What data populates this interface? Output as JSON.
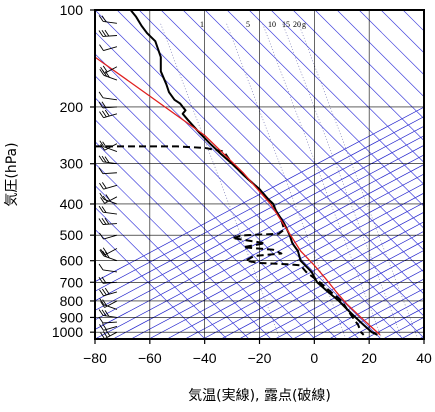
{
  "chart_data": {
    "type": "line",
    "title": "",
    "xlabel": "気温(実線), 露点(破線)",
    "ylabel": "気圧(hPa)",
    "xlim": [
      -80,
      40
    ],
    "ylim": [
      1050,
      100
    ],
    "y_scale": "log",
    "x_ticks": [
      -80,
      -60,
      -40,
      -20,
      0,
      20,
      40
    ],
    "y_ticks": [
      100,
      200,
      300,
      400,
      500,
      600,
      700,
      800,
      900,
      1000
    ],
    "grid": true,
    "mixing_ratio_labels": [
      "1",
      "5",
      "10",
      "15",
      "20",
      "g"
    ],
    "series": [
      {
        "role": "temperature",
        "style": "solid",
        "color": "#000000",
        "points": [
          [
            -67,
            100
          ],
          [
            -65,
            105
          ],
          [
            -63,
            112
          ],
          [
            -61,
            118
          ],
          [
            -58,
            125
          ],
          [
            -56,
            140
          ],
          [
            -56,
            155
          ],
          [
            -54,
            170
          ],
          [
            -53,
            180
          ],
          [
            -51,
            190
          ],
          [
            -49,
            195
          ],
          [
            -47,
            205
          ],
          [
            -48,
            210
          ],
          [
            -46,
            220
          ],
          [
            -42,
            240
          ],
          [
            -38,
            260
          ],
          [
            -34,
            280
          ],
          [
            -30,
            300
          ],
          [
            -25,
            330
          ],
          [
            -20,
            360
          ],
          [
            -17,
            385
          ],
          [
            -15,
            400
          ],
          [
            -14,
            420
          ],
          [
            -11,
            460
          ],
          [
            -9,
            500
          ],
          [
            -8,
            530
          ],
          [
            -6,
            560
          ],
          [
            -5,
            600
          ],
          [
            -1,
            650
          ],
          [
            1,
            700
          ],
          [
            5,
            750
          ],
          [
            9,
            800
          ],
          [
            12,
            850
          ],
          [
            15,
            900
          ],
          [
            18,
            950
          ],
          [
            21,
            1000
          ],
          [
            23,
            1020
          ]
        ]
      },
      {
        "role": "dewpoint",
        "style": "dashed",
        "color": "#000000",
        "points": [
          [
            -80,
            265
          ],
          [
            -50,
            265
          ],
          [
            -40,
            268
          ],
          [
            -33,
            275
          ],
          [
            -30,
            300
          ],
          [
            -25,
            330
          ],
          [
            -20,
            360
          ],
          [
            -17,
            385
          ],
          [
            -15,
            400
          ],
          [
            -14,
            420
          ],
          [
            -12,
            450
          ],
          [
            -11,
            480
          ],
          [
            -13,
            495
          ],
          [
            -25,
            500
          ],
          [
            -30,
            510
          ],
          [
            -18,
            530
          ],
          [
            -26,
            545
          ],
          [
            -15,
            555
          ],
          [
            -12,
            570
          ],
          [
            -22,
            580
          ],
          [
            -25,
            600
          ],
          [
            -20,
            610
          ],
          [
            -10,
            615
          ],
          [
            -5,
            620
          ],
          [
            -3,
            650
          ],
          [
            2,
            700
          ],
          [
            6,
            750
          ],
          [
            10,
            800
          ],
          [
            12,
            850
          ],
          [
            14,
            900
          ],
          [
            16,
            950
          ],
          [
            17,
            1000
          ],
          [
            18,
            1020
          ]
        ]
      },
      {
        "role": "parcel",
        "style": "solid",
        "color": "#e02020",
        "points": [
          [
            -80,
            140
          ],
          [
            -60,
            185
          ],
          [
            -40,
            245
          ],
          [
            -26,
            320
          ],
          [
            -16,
            400
          ],
          [
            -10,
            480
          ],
          [
            -5,
            560
          ],
          [
            0,
            620
          ],
          [
            4,
            680
          ],
          [
            8,
            750
          ],
          [
            12,
            820
          ],
          [
            17,
            900
          ],
          [
            20,
            950
          ],
          [
            24,
            1020
          ]
        ]
      }
    ],
    "wind_barbs": {
      "x": -72,
      "pressures": [
        100,
        110,
        120,
        130,
        150,
        165,
        190,
        200,
        210,
        260,
        275,
        300,
        320,
        350,
        380,
        400,
        430,
        460,
        500,
        550,
        600,
        650,
        700,
        750,
        800,
        850,
        900,
        930,
        960,
        1000
      ]
    }
  },
  "colors": {
    "frame": "#000000",
    "grid": "#000000",
    "dry_adiabat": "#2222cc",
    "moist_adiabat": "#4444dd",
    "mixing_ratio": "#6666aa",
    "parcel": "#e02020"
  }
}
